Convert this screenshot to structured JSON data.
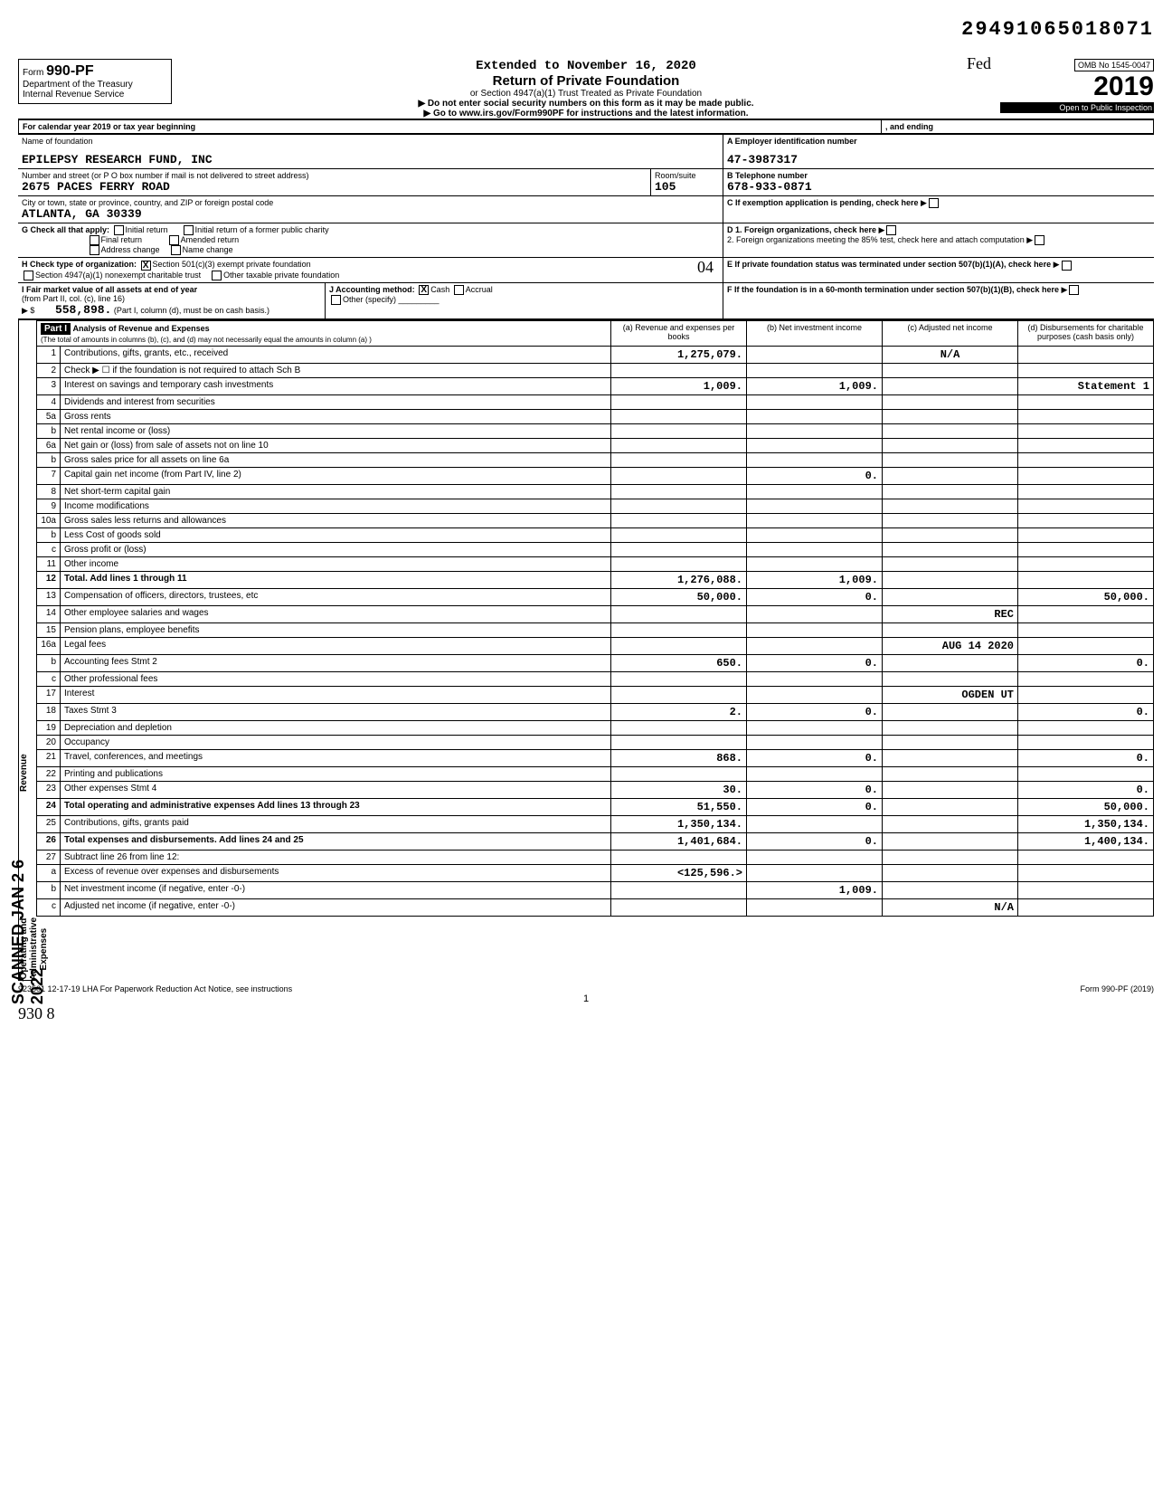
{
  "top_number": "29491065018071",
  "header": {
    "form_prefix": "Form",
    "form_no": "990-PF",
    "dept": "Department of the Treasury",
    "irs": "Internal Revenue Service",
    "extended": "Extended to November 16, 2020",
    "main_title": "Return of Private Foundation",
    "sub1": "or Section 4947(a)(1) Trust Treated as Private Foundation",
    "sub2": "▶ Do not enter social security numbers on this form as it may be made public.",
    "sub3": "▶ Go to www.irs.gov/Form990PF for instructions and the latest information.",
    "handwritten_fed": "Fed",
    "omb": "OMB No 1545-0047",
    "year": "2019",
    "open": "Open to Public Inspection",
    "cal_year": "For calendar year 2019 or tax year beginning",
    "and_ending": ", and ending"
  },
  "identity": {
    "name_label": "Name of foundation",
    "name": "EPILEPSY RESEARCH FUND, INC",
    "ein_label": "A Employer identification number",
    "ein": "47-3987317",
    "addr_label": "Number and street (or P O box number if mail is not delivered to street address)",
    "addr": "2675 PACES FERRY ROAD",
    "room_label": "Room/suite",
    "room": "105",
    "phone_label": "B Telephone number",
    "phone": "678-933-0871",
    "city_label": "City or town, state or province, country, and ZIP or foreign postal code",
    "city": "ATLANTA, GA  30339",
    "c_label": "C If exemption application is pending, check here"
  },
  "checks": {
    "g_label": "G  Check all that apply:",
    "g1": "Initial return",
    "g2": "Initial return of a former public charity",
    "g3": "Final return",
    "g4": "Amended return",
    "g5": "Address change",
    "g6": "Name change",
    "d1": "D 1. Foreign organizations, check here",
    "d2": "2. Foreign organizations meeting the 85% test, check here and attach computation",
    "h_label": "H  Check type of organization:",
    "h1": "Section 501(c)(3) exempt private foundation",
    "h2": "Section 4947(a)(1) nonexempt charitable trust",
    "h3": "Other taxable private foundation",
    "h_x": "X",
    "hand_04": "04",
    "e_label": "E  If private foundation status was terminated under section 507(b)(1)(A), check here",
    "i_label": "I  Fair market value of all assets at end of year",
    "i_sub": "(from Part II, col. (c), line 16)",
    "i_val": "558,898.",
    "i_note": "(Part I, column (d), must be on cash basis.)",
    "j_label": "J  Accounting method:",
    "j1": "Cash",
    "j2": "Accrual",
    "j3": "Other (specify)",
    "j_x": "X",
    "f_label": "F  If the foundation is in a 60-month termination under section 507(b)(1)(B), check here"
  },
  "part1": {
    "title": "Part I",
    "hdr": "Analysis of Revenue and Expenses",
    "hdr_sub": "(The total of amounts in columns (b), (c), and (d) may not necessarily equal the amounts in column (a) )",
    "col_a": "(a) Revenue and expenses per books",
    "col_b": "(b) Net investment income",
    "col_c": "(c) Adjusted net income",
    "col_d": "(d) Disbursements for charitable purposes (cash basis only)"
  },
  "rows": {
    "r1": {
      "n": "1",
      "l": "Contributions, gifts, grants, etc., received",
      "a": "1,275,079.",
      "b": "",
      "c": "N/A",
      "d": ""
    },
    "r2": {
      "n": "2",
      "l": "Check ▶ ☐ if the foundation is not required to attach Sch B",
      "a": "",
      "b": "",
      "c": "",
      "d": ""
    },
    "r3": {
      "n": "3",
      "l": "Interest on savings and temporary cash investments",
      "a": "1,009.",
      "b": "1,009.",
      "c": "",
      "d": "Statement 1"
    },
    "r4": {
      "n": "4",
      "l": "Dividends and interest from securities",
      "a": "",
      "b": "",
      "c": "",
      "d": ""
    },
    "r5a": {
      "n": "5a",
      "l": "Gross rents",
      "a": "",
      "b": "",
      "c": "",
      "d": ""
    },
    "r5b": {
      "n": "b",
      "l": "Net rental income or (loss)",
      "a": "",
      "b": "",
      "c": "",
      "d": ""
    },
    "r6a": {
      "n": "6a",
      "l": "Net gain or (loss) from sale of assets not on line 10",
      "a": "",
      "b": "",
      "c": "",
      "d": ""
    },
    "r6b": {
      "n": "b",
      "l": "Gross sales price for all assets on line 6a",
      "a": "",
      "b": "",
      "c": "",
      "d": ""
    },
    "r7": {
      "n": "7",
      "l": "Capital gain net income (from Part IV, line 2)",
      "a": "",
      "b": "0.",
      "c": "",
      "d": ""
    },
    "r8": {
      "n": "8",
      "l": "Net short-term capital gain",
      "a": "",
      "b": "",
      "c": "",
      "d": ""
    },
    "r9": {
      "n": "9",
      "l": "Income modifications",
      "a": "",
      "b": "",
      "c": "",
      "d": ""
    },
    "r10a": {
      "n": "10a",
      "l": "Gross sales less returns and allowances",
      "a": "",
      "b": "",
      "c": "",
      "d": ""
    },
    "r10b": {
      "n": "b",
      "l": "Less Cost of goods sold",
      "a": "",
      "b": "",
      "c": "",
      "d": ""
    },
    "r10c": {
      "n": "c",
      "l": "Gross profit or (loss)",
      "a": "",
      "b": "",
      "c": "",
      "d": ""
    },
    "r11": {
      "n": "11",
      "l": "Other income",
      "a": "",
      "b": "",
      "c": "",
      "d": ""
    },
    "r12": {
      "n": "12",
      "l": "Total. Add lines 1 through 11",
      "a": "1,276,088.",
      "b": "1,009.",
      "c": "",
      "d": ""
    },
    "r13": {
      "n": "13",
      "l": "Compensation of officers, directors, trustees, etc",
      "a": "50,000.",
      "b": "0.",
      "c": "",
      "d": "50,000."
    },
    "r14": {
      "n": "14",
      "l": "Other employee salaries and wages",
      "a": "",
      "b": "",
      "c": "REC",
      "d": ""
    },
    "r15": {
      "n": "15",
      "l": "Pension plans, employee benefits",
      "a": "",
      "b": "",
      "c": "",
      "d": ""
    },
    "r16a": {
      "n": "16a",
      "l": "Legal fees",
      "a": "",
      "b": "",
      "c": "AUG 14 2020",
      "d": ""
    },
    "r16b": {
      "n": "b",
      "l": "Accounting fees              Stmt 2",
      "a": "650.",
      "b": "0.",
      "c": "",
      "d": "0."
    },
    "r16c": {
      "n": "c",
      "l": "Other professional fees",
      "a": "",
      "b": "",
      "c": "",
      "d": ""
    },
    "r17": {
      "n": "17",
      "l": "Interest",
      "a": "",
      "b": "",
      "c": "OGDEN UT",
      "d": ""
    },
    "r18": {
      "n": "18",
      "l": "Taxes                        Stmt 3",
      "a": "2.",
      "b": "0.",
      "c": "",
      "d": "0."
    },
    "r19": {
      "n": "19",
      "l": "Depreciation and depletion",
      "a": "",
      "b": "",
      "c": "",
      "d": ""
    },
    "r20": {
      "n": "20",
      "l": "Occupancy",
      "a": "",
      "b": "",
      "c": "",
      "d": ""
    },
    "r21": {
      "n": "21",
      "l": "Travel, conferences, and meetings",
      "a": "868.",
      "b": "0.",
      "c": "",
      "d": "0."
    },
    "r22": {
      "n": "22",
      "l": "Printing and publications",
      "a": "",
      "b": "",
      "c": "",
      "d": ""
    },
    "r23": {
      "n": "23",
      "l": "Other expenses               Stmt 4",
      "a": "30.",
      "b": "0.",
      "c": "",
      "d": "0."
    },
    "r24": {
      "n": "24",
      "l": "Total operating and administrative expenses Add lines 13 through 23",
      "a": "51,550.",
      "b": "0.",
      "c": "",
      "d": "50,000."
    },
    "r25": {
      "n": "25",
      "l": "Contributions, gifts, grants paid",
      "a": "1,350,134.",
      "b": "",
      "c": "",
      "d": "1,350,134."
    },
    "r26": {
      "n": "26",
      "l": "Total expenses and disbursements. Add lines 24 and 25",
      "a": "1,401,684.",
      "b": "0.",
      "c": "",
      "d": "1,400,134."
    },
    "r27": {
      "n": "27",
      "l": "Subtract line 26 from line 12:",
      "a": "",
      "b": "",
      "c": "",
      "d": ""
    },
    "r27a": {
      "n": "a",
      "l": "Excess of revenue over expenses and disbursements",
      "a": "<125,596.>",
      "b": "",
      "c": "",
      "d": ""
    },
    "r27b": {
      "n": "b",
      "l": "Net investment income (if negative, enter -0-)",
      "a": "",
      "b": "1,009.",
      "c": "",
      "d": ""
    },
    "r27c": {
      "n": "c",
      "l": "Adjusted net income (if negative, enter -0-)",
      "a": "",
      "b": "",
      "c": "N/A",
      "d": ""
    }
  },
  "side": {
    "revenue": "Revenue",
    "expenses": "Operating and Administrative Expenses",
    "scanned": "SCANNED JAN 2 6 2022"
  },
  "footer": {
    "left": "923501 12-17-19  LHA  For Paperwork Reduction Act Notice, see instructions",
    "right": "Form 990-PF (2019)",
    "page": "1",
    "hand": "930  8"
  }
}
